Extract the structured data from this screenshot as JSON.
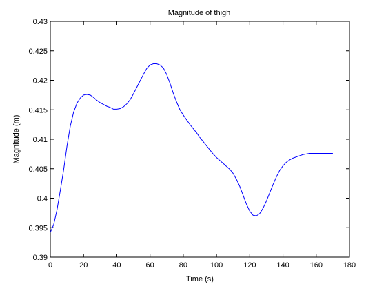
{
  "chart_data": {
    "type": "line",
    "title": "Magnitude of thigh",
    "xlabel": "Time (s)",
    "ylabel": "Magnitude (m)",
    "xlim": [
      0,
      180
    ],
    "ylim": [
      0.39,
      0.43
    ],
    "x_ticks": [
      0,
      20,
      40,
      60,
      80,
      100,
      120,
      140,
      160,
      180
    ],
    "y_ticks": [
      0.39,
      0.395,
      0.4,
      0.405,
      0.41,
      0.415,
      0.42,
      0.425,
      0.43
    ],
    "x_tick_labels": [
      "0",
      "20",
      "40",
      "60",
      "80",
      "100",
      "120",
      "140",
      "160",
      "180"
    ],
    "y_tick_labels": [
      "0.39",
      "0.395",
      "0.4",
      "0.405",
      "0.41",
      "0.415",
      "0.42",
      "0.425",
      "0.43"
    ],
    "grid": false,
    "legend": "none",
    "series": [
      {
        "color": "#0000ff",
        "x": [
          0,
          2,
          4,
          6,
          8,
          10,
          12,
          14,
          16,
          18,
          20,
          22,
          24,
          26,
          28,
          30,
          32,
          34,
          36,
          38,
          40,
          42,
          44,
          46,
          48,
          50,
          52,
          54,
          56,
          58,
          60,
          62,
          64,
          66,
          68,
          70,
          72,
          74,
          76,
          78,
          80,
          82,
          84,
          86,
          88,
          90,
          92,
          94,
          96,
          98,
          100,
          102,
          104,
          106,
          108,
          110,
          112,
          114,
          116,
          118,
          120,
          122,
          124,
          126,
          128,
          130,
          132,
          134,
          136,
          138,
          140,
          142,
          144,
          146,
          148,
          150,
          152,
          154,
          156,
          158,
          160,
          162,
          164,
          166,
          168,
          170
        ],
        "y": [
          0.3942,
          0.3955,
          0.398,
          0.4013,
          0.4048,
          0.4088,
          0.4122,
          0.4146,
          0.4161,
          0.417,
          0.4175,
          0.4176,
          0.4175,
          0.4171,
          0.4166,
          0.4162,
          0.4159,
          0.4156,
          0.4154,
          0.4151,
          0.4151,
          0.4152,
          0.4155,
          0.416,
          0.4167,
          0.4177,
          0.4188,
          0.4199,
          0.421,
          0.422,
          0.4226,
          0.4228,
          0.4228,
          0.4226,
          0.4221,
          0.421,
          0.4195,
          0.4178,
          0.4163,
          0.415,
          0.4141,
          0.4133,
          0.4125,
          0.4118,
          0.4111,
          0.4103,
          0.4096,
          0.4089,
          0.4082,
          0.4075,
          0.4069,
          0.4064,
          0.4059,
          0.4054,
          0.4049,
          0.4042,
          0.4032,
          0.402,
          0.4005,
          0.399,
          0.3978,
          0.3971,
          0.397,
          0.3974,
          0.3983,
          0.3995,
          0.4009,
          0.4023,
          0.4036,
          0.4047,
          0.4055,
          0.4061,
          0.4065,
          0.4068,
          0.407,
          0.4072,
          0.4074,
          0.4075,
          0.4076,
          0.4076,
          0.4076,
          0.4076,
          0.4076,
          0.4076,
          0.4076,
          0.4076
        ]
      }
    ]
  }
}
